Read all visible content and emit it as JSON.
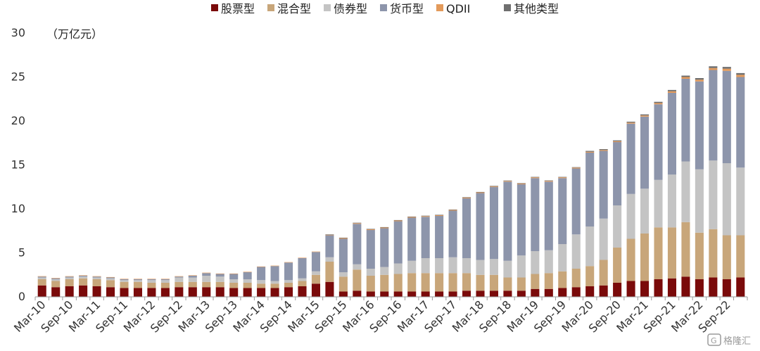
{
  "chart_data": {
    "type": "bar",
    "stacked": true,
    "unit_label": "（万亿元）",
    "ylim": [
      0,
      30
    ],
    "yticks": [
      0,
      5,
      10,
      15,
      20,
      25,
      30
    ],
    "grid": false,
    "legend_position": "top",
    "x_tick_labels": [
      "Mar-10",
      "Sep-10",
      "Mar-11",
      "Sep-11",
      "Mar-12",
      "Sep-12",
      "Mar-13",
      "Sep-13",
      "Mar-14",
      "Sep-14",
      "Mar-15",
      "Sep-15",
      "Mar-16",
      "Sep-16",
      "Mar-17",
      "Sep-17",
      "Mar-18",
      "Sep-18",
      "Mar-19",
      "Sep-19",
      "Mar-20",
      "Sep-20",
      "Mar-21",
      "Sep-21",
      "Mar-22",
      "Sep-22"
    ],
    "categories": [
      "Mar-10",
      "Jun-10",
      "Sep-10",
      "Dec-10",
      "Mar-11",
      "Jun-11",
      "Sep-11",
      "Dec-11",
      "Mar-12",
      "Jun-12",
      "Sep-12",
      "Dec-12",
      "Mar-13",
      "Jun-13",
      "Sep-13",
      "Dec-13",
      "Mar-14",
      "Jun-14",
      "Sep-14",
      "Dec-14",
      "Mar-15",
      "Jun-15",
      "Sep-15",
      "Dec-15",
      "Mar-16",
      "Jun-16",
      "Sep-16",
      "Dec-16",
      "Mar-17",
      "Jun-17",
      "Sep-17",
      "Dec-17",
      "Mar-18",
      "Jun-18",
      "Sep-18",
      "Dec-18",
      "Mar-19",
      "Jun-19",
      "Sep-19",
      "Dec-19",
      "Mar-20",
      "Jun-20",
      "Sep-20",
      "Dec-20",
      "Mar-21",
      "Jun-21",
      "Sep-21",
      "Dec-21",
      "Mar-22",
      "Jun-22",
      "Sep-22",
      "Dec-22"
    ],
    "series": [
      {
        "name": "股票型",
        "color": "#7a0a0a",
        "values": [
          1.3,
          1.1,
          1.2,
          1.3,
          1.2,
          1.1,
          1.0,
          1.0,
          1.0,
          1.0,
          1.1,
          1.1,
          1.1,
          1.1,
          1.0,
          1.0,
          1.0,
          1.0,
          1.1,
          1.2,
          1.5,
          1.7,
          0.6,
          0.7,
          0.6,
          0.6,
          0.6,
          0.6,
          0.6,
          0.6,
          0.6,
          0.7,
          0.7,
          0.7,
          0.7,
          0.7,
          0.9,
          0.9,
          1.0,
          1.1,
          1.2,
          1.3,
          1.6,
          1.8,
          1.8,
          2.0,
          2.1,
          2.3,
          2.0,
          2.2,
          2.0,
          2.2
        ]
      },
      {
        "name": "混合型",
        "color": "#c8a67a",
        "values": [
          0.7,
          0.7,
          0.8,
          0.8,
          0.8,
          0.8,
          0.7,
          0.7,
          0.6,
          0.6,
          0.6,
          0.6,
          0.6,
          0.6,
          0.6,
          0.6,
          0.5,
          0.5,
          0.5,
          0.6,
          1.0,
          2.3,
          1.7,
          2.4,
          1.8,
          1.9,
          2.0,
          2.1,
          2.1,
          2.1,
          2.1,
          2.0,
          1.8,
          1.8,
          1.5,
          1.5,
          1.7,
          1.8,
          1.9,
          2.1,
          2.3,
          2.9,
          4.0,
          4.8,
          5.4,
          5.9,
          5.8,
          6.2,
          5.3,
          5.5,
          5.0,
          4.8
        ]
      },
      {
        "name": "债券型",
        "color": "#c4c4c4",
        "values": [
          0.2,
          0.2,
          0.2,
          0.2,
          0.2,
          0.2,
          0.2,
          0.2,
          0.3,
          0.3,
          0.5,
          0.5,
          0.7,
          0.6,
          0.4,
          0.4,
          0.4,
          0.3,
          0.3,
          0.3,
          0.4,
          0.5,
          0.5,
          0.6,
          0.8,
          0.9,
          1.2,
          1.4,
          1.7,
          1.7,
          1.8,
          1.7,
          1.7,
          1.8,
          1.9,
          2.5,
          2.6,
          2.6,
          3.1,
          3.9,
          4.5,
          4.7,
          4.8,
          5.1,
          5.1,
          5.4,
          6.0,
          6.9,
          7.2,
          7.8,
          8.2,
          7.7
        ]
      },
      {
        "name": "货币型",
        "color": "#8d95ab",
        "values": [
          0.1,
          0.1,
          0.1,
          0.1,
          0.1,
          0.1,
          0.1,
          0.1,
          0.1,
          0.1,
          0.1,
          0.2,
          0.3,
          0.3,
          0.6,
          0.8,
          1.5,
          1.7,
          2.0,
          2.3,
          2.2,
          2.5,
          3.8,
          4.6,
          4.4,
          4.4,
          4.8,
          4.9,
          4.7,
          4.8,
          5.3,
          6.8,
          7.6,
          8.2,
          9.0,
          8.1,
          8.3,
          7.8,
          7.5,
          7.5,
          8.4,
          7.7,
          7.2,
          8.0,
          8.2,
          8.6,
          9.3,
          9.4,
          10.0,
          10.3,
          10.5,
          10.3
        ]
      },
      {
        "name": "QDII",
        "color": "#e39a5b",
        "values": [
          0.05,
          0.05,
          0.05,
          0.05,
          0.05,
          0.05,
          0.05,
          0.05,
          0.05,
          0.05,
          0.05,
          0.05,
          0.05,
          0.05,
          0.05,
          0.05,
          0.05,
          0.05,
          0.05,
          0.05,
          0.05,
          0.06,
          0.08,
          0.08,
          0.08,
          0.08,
          0.08,
          0.08,
          0.08,
          0.08,
          0.08,
          0.08,
          0.08,
          0.08,
          0.08,
          0.08,
          0.09,
          0.09,
          0.09,
          0.1,
          0.1,
          0.1,
          0.1,
          0.12,
          0.13,
          0.15,
          0.18,
          0.2,
          0.2,
          0.22,
          0.25,
          0.25
        ]
      },
      {
        "name": "其他类型",
        "color": "#6f6f6f",
        "values": [
          0.0,
          0.0,
          0.0,
          0.0,
          0.0,
          0.0,
          0.0,
          0.0,
          0.0,
          0.0,
          0.0,
          0.0,
          0.0,
          0.0,
          0.0,
          0.0,
          0.0,
          0.0,
          0.0,
          0.0,
          0.0,
          0.05,
          0.05,
          0.05,
          0.05,
          0.05,
          0.05,
          0.05,
          0.05,
          0.05,
          0.05,
          0.05,
          0.05,
          0.05,
          0.05,
          0.05,
          0.05,
          0.05,
          0.05,
          0.05,
          0.1,
          0.1,
          0.1,
          0.1,
          0.12,
          0.13,
          0.15,
          0.16,
          0.18,
          0.2,
          0.2,
          0.2
        ]
      }
    ]
  },
  "watermark": {
    "text": "格隆汇",
    "icon": "gelonghui-logo-icon"
  }
}
